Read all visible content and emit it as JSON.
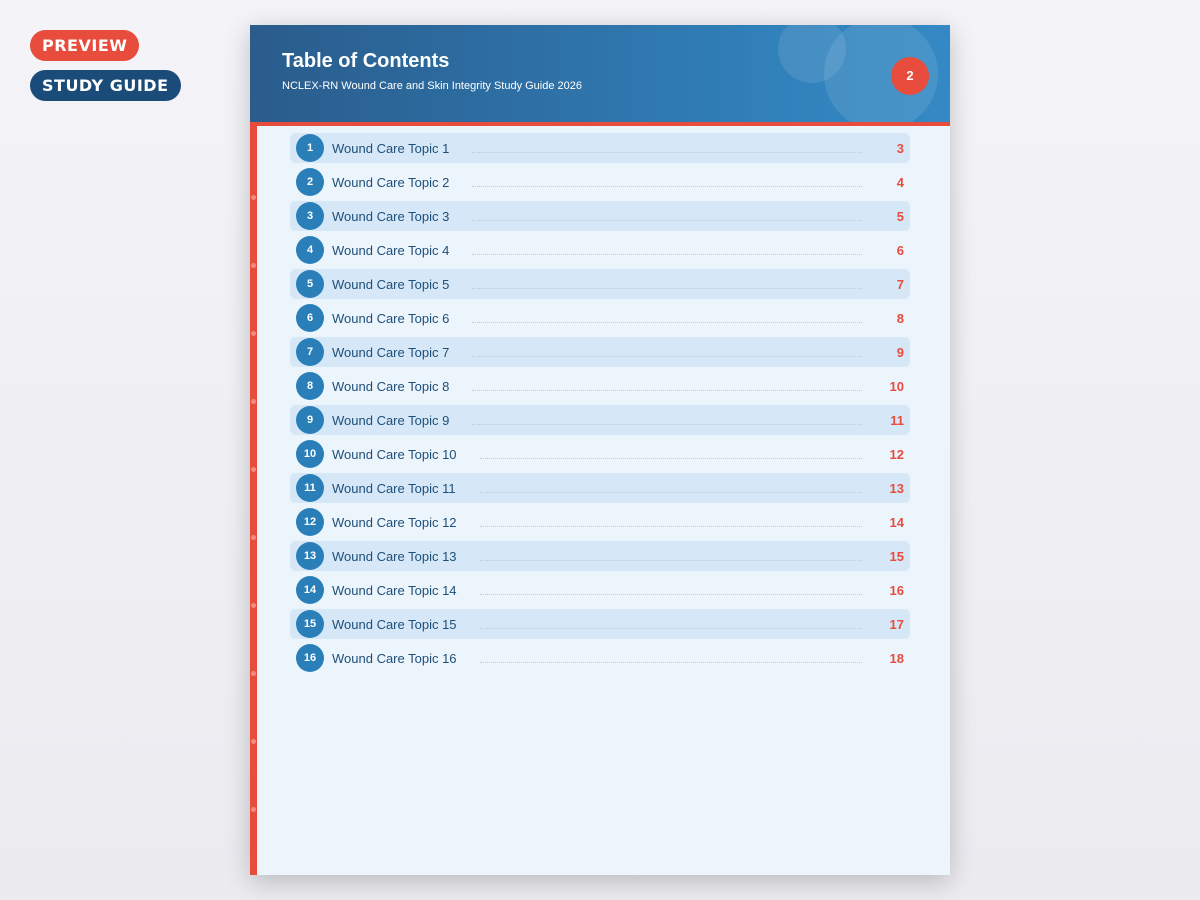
{
  "badges": {
    "preview": "PREVIEW",
    "study_guide": "STUDY GUIDE"
  },
  "header": {
    "title": "Table of Contents",
    "subtitle": "NCLEX-RN Wound Care and Skin Integrity Study Guide 2026",
    "page_number": "2"
  },
  "colors": {
    "accent": "#e84c3d",
    "primary": "#2a7fb9",
    "dark": "#1b4c79"
  },
  "toc": [
    {
      "num": "1",
      "label": "Wound Care Topic 1",
      "page": "3"
    },
    {
      "num": "2",
      "label": "Wound Care Topic 2",
      "page": "4"
    },
    {
      "num": "3",
      "label": "Wound Care Topic 3",
      "page": "5"
    },
    {
      "num": "4",
      "label": "Wound Care Topic 4",
      "page": "6"
    },
    {
      "num": "5",
      "label": "Wound Care Topic 5",
      "page": "7"
    },
    {
      "num": "6",
      "label": "Wound Care Topic 6",
      "page": "8"
    },
    {
      "num": "7",
      "label": "Wound Care Topic 7",
      "page": "9"
    },
    {
      "num": "8",
      "label": "Wound Care Topic 8",
      "page": "10"
    },
    {
      "num": "9",
      "label": "Wound Care Topic 9",
      "page": "11"
    },
    {
      "num": "10",
      "label": "Wound Care Topic 10",
      "page": "12"
    },
    {
      "num": "11",
      "label": "Wound Care Topic 11",
      "page": "13"
    },
    {
      "num": "12",
      "label": "Wound Care Topic 12",
      "page": "14"
    },
    {
      "num": "13",
      "label": "Wound Care Topic 13",
      "page": "15"
    },
    {
      "num": "14",
      "label": "Wound Care Topic 14",
      "page": "16"
    },
    {
      "num": "15",
      "label": "Wound Care Topic 15",
      "page": "17"
    },
    {
      "num": "16",
      "label": "Wound Care Topic 16",
      "page": "18"
    }
  ]
}
